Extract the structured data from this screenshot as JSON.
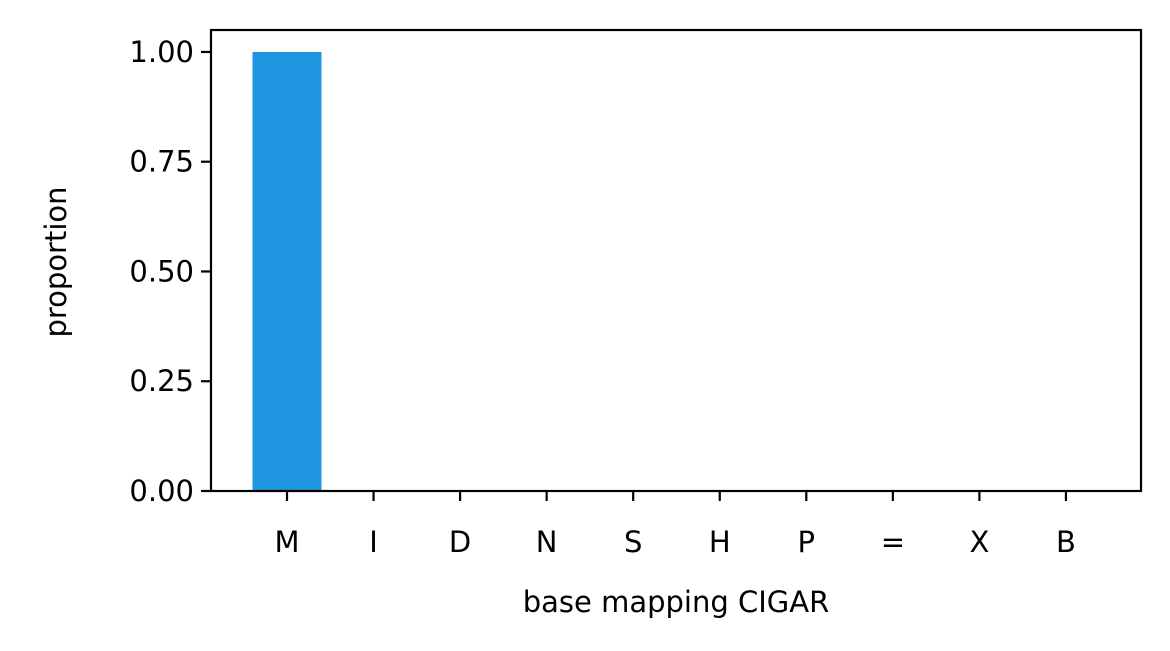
{
  "chart_data": {
    "type": "bar",
    "categories": [
      "M",
      "I",
      "D",
      "N",
      "S",
      "H",
      "P",
      "=",
      "X",
      "B"
    ],
    "values": [
      1.0,
      0,
      0,
      0,
      0,
      0,
      0,
      0,
      0,
      0
    ],
    "xlabel": "base mapping CIGAR",
    "ylabel": "proportion",
    "ylim": [
      0,
      1.05
    ],
    "yticks": [
      0.0,
      0.25,
      0.5,
      0.75,
      1.0
    ],
    "ytick_labels": [
      "0.00",
      "0.25",
      "0.50",
      "0.75",
      "1.00"
    ],
    "bar_color": "#1f97e0",
    "grid": false,
    "legend": "none"
  }
}
